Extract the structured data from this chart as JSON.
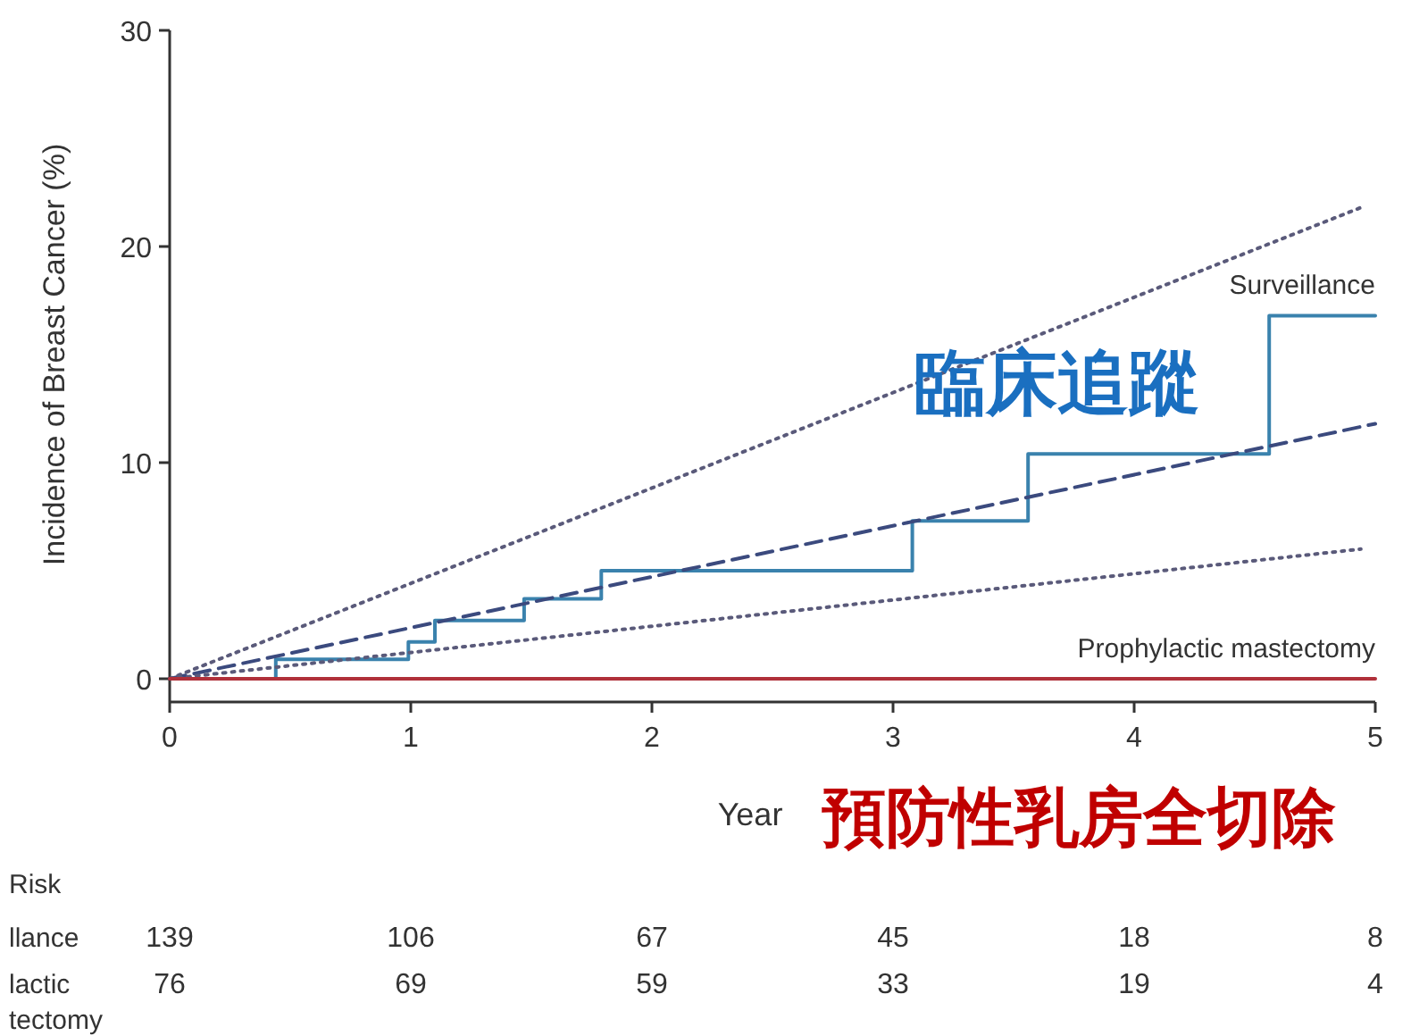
{
  "chart_data": {
    "type": "line",
    "xlabel": "Year",
    "ylabel": "Incidence of Breast Cancer (%)",
    "xlim": [
      0,
      5
    ],
    "ylim": [
      0,
      30
    ],
    "xticks": [
      0,
      1,
      2,
      3,
      4,
      5
    ],
    "yticks": [
      0,
      10,
      20,
      30
    ],
    "series": [
      {
        "name": "Surveillance",
        "type": "step",
        "color": "#3a82ad",
        "x": [
          0,
          0.44,
          0.99,
          1.1,
          1.47,
          1.79,
          3.08,
          3.56,
          4.56,
          5
        ],
        "values": [
          0,
          0.9,
          1.7,
          2.7,
          3.7,
          5.0,
          7.3,
          10.4,
          16.8,
          16.8
        ]
      },
      {
        "type": "line",
        "line_style": "dashed",
        "color": "#3b4a7e",
        "x": [
          0,
          5
        ],
        "values": [
          0,
          11.8
        ]
      },
      {
        "type": "line",
        "line_style": "dotted",
        "color": "#5a5a7a",
        "x": [
          0,
          4.94
        ],
        "values": [
          0,
          21.8
        ]
      },
      {
        "type": "line",
        "line_style": "dotted",
        "color": "#5a5a7a",
        "x": [
          0,
          4.94
        ],
        "values": [
          0,
          6.0
        ]
      },
      {
        "name": "Prophylactic mastectomy",
        "type": "line",
        "color": "#b0303a",
        "x": [
          0,
          5
        ],
        "values": [
          0,
          0
        ]
      }
    ],
    "annotations": [
      "臨床追蹤",
      "預防性乳房全切除",
      "Risk",
      "llance\t139\t106\t67\t45\t18\t8",
      "lactic\t76\t69\t59\t33\t19\t4",
      "tectomy"
    ]
  }
}
